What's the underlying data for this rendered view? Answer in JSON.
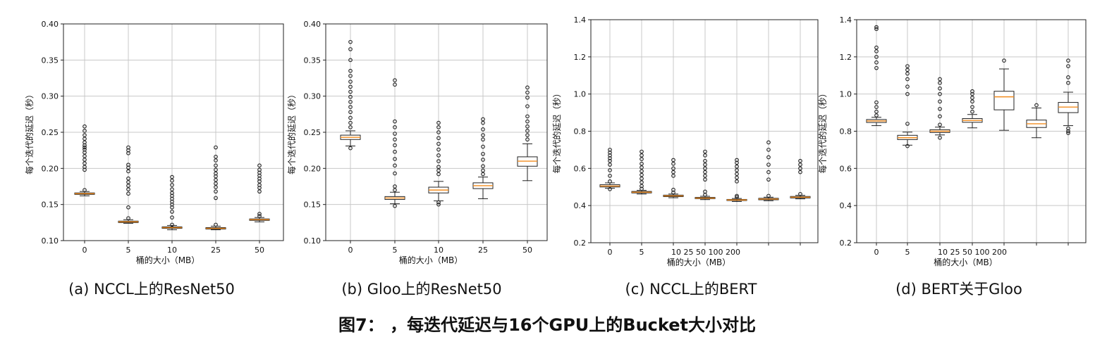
{
  "figure_title": "图7： ，每迭代延迟与16个GPU上的Bucket大小对比",
  "chart_data": [
    {
      "type": "box",
      "caption": "(a) NCCL上的ResNet50",
      "xlabel": "桶的大小（MB）",
      "ylabel": "每个迭代的延迟（秒）",
      "ylim": [
        0.1,
        0.4
      ],
      "yticks": [
        0.1,
        0.15,
        0.2,
        0.25,
        0.3,
        0.35,
        0.4
      ],
      "grid": true,
      "categories": [
        "0",
        "5",
        "10",
        "25",
        "50"
      ],
      "boxes": [
        {
          "med": 0.165,
          "q1": 0.164,
          "q3": 0.166,
          "wlo": 0.162,
          "whi": 0.168,
          "fliers": [
            0.17,
            0.198,
            0.202,
            0.207,
            0.212,
            0.217,
            0.222,
            0.226,
            0.229,
            0.232,
            0.236,
            0.241,
            0.246,
            0.252,
            0.258
          ]
        },
        {
          "med": 0.126,
          "q1": 0.125,
          "q3": 0.127,
          "wlo": 0.124,
          "whi": 0.129,
          "fliers": [
            0.131,
            0.146,
            0.165,
            0.171,
            0.176,
            0.181,
            0.186,
            0.196,
            0.201,
            0.205,
            0.221,
            0.225,
            0.229
          ]
        },
        {
          "med": 0.118,
          "q1": 0.117,
          "q3": 0.119,
          "wlo": 0.115,
          "whi": 0.121,
          "fliers": [
            0.122,
            0.132,
            0.14,
            0.146,
            0.15,
            0.154,
            0.158,
            0.162,
            0.166,
            0.171,
            0.177,
            0.183,
            0.188
          ]
        },
        {
          "med": 0.117,
          "q1": 0.116,
          "q3": 0.118,
          "wlo": 0.115,
          "whi": 0.12,
          "fliers": [
            0.122,
            0.159,
            0.168,
            0.174,
            0.179,
            0.184,
            0.189,
            0.193,
            0.198,
            0.204,
            0.211,
            0.216,
            0.229
          ]
        },
        {
          "med": 0.129,
          "q1": 0.128,
          "q3": 0.13,
          "wlo": 0.126,
          "whi": 0.132,
          "fliers": [
            0.134,
            0.137,
            0.168,
            0.173,
            0.177,
            0.182,
            0.186,
            0.19,
            0.194,
            0.198,
            0.204
          ]
        }
      ]
    },
    {
      "type": "box",
      "caption": "(b) Gloo上的ResNet50",
      "xlabel": "桶的大小（MB）",
      "ylabel": "每个迭代的延迟（秒）",
      "ylim": [
        0.1,
        0.4
      ],
      "yticks": [
        0.1,
        0.15,
        0.2,
        0.25,
        0.3,
        0.35,
        0.4
      ],
      "grid": true,
      "categories": [
        "0",
        "5",
        "10",
        "25",
        "50"
      ],
      "boxes": [
        {
          "med": 0.243,
          "q1": 0.24,
          "q3": 0.246,
          "wlo": 0.231,
          "whi": 0.252,
          "fliers": [
            0.228,
            0.257,
            0.263,
            0.27,
            0.278,
            0.285,
            0.292,
            0.299,
            0.306,
            0.313,
            0.32,
            0.328,
            0.335,
            0.35,
            0.365,
            0.375
          ]
        },
        {
          "med": 0.159,
          "q1": 0.157,
          "q3": 0.161,
          "wlo": 0.151,
          "whi": 0.167,
          "fliers": [
            0.148,
            0.17,
            0.175,
            0.193,
            0.204,
            0.213,
            0.223,
            0.232,
            0.24,
            0.248,
            0.257,
            0.265,
            0.316,
            0.322
          ]
        },
        {
          "med": 0.17,
          "q1": 0.166,
          "q3": 0.174,
          "wlo": 0.155,
          "whi": 0.182,
          "fliers": [
            0.15,
            0.153,
            0.192,
            0.197,
            0.202,
            0.21,
            0.218,
            0.226,
            0.234,
            0.242,
            0.25,
            0.257,
            0.263
          ]
        },
        {
          "med": 0.176,
          "q1": 0.172,
          "q3": 0.18,
          "wlo": 0.158,
          "whi": 0.188,
          "fliers": [
            0.192,
            0.197,
            0.203,
            0.212,
            0.22,
            0.23,
            0.24,
            0.246,
            0.254,
            0.263,
            0.268
          ]
        },
        {
          "med": 0.21,
          "q1": 0.203,
          "q3": 0.216,
          "wlo": 0.183,
          "whi": 0.234,
          "fliers": [
            0.24,
            0.246,
            0.252,
            0.258,
            0.265,
            0.272,
            0.286,
            0.298,
            0.305,
            0.312
          ]
        }
      ]
    },
    {
      "type": "box",
      "caption": "(c) NCCL上的BERT",
      "xlabel": "桶的大小（MB）",
      "ylabel": "每个迭代的延迟（秒）",
      "ylim": [
        0.2,
        1.4
      ],
      "yticks": [
        0.2,
        0.4,
        0.6,
        0.8,
        1.0,
        1.2,
        1.4
      ],
      "grid": true,
      "categories": [
        "0",
        "5",
        "10",
        "25",
        "50",
        "100",
        "200"
      ],
      "tick_labels": [
        "0",
        "5",
        "10 25 50 100 200"
      ],
      "boxes": [
        {
          "med": 0.505,
          "q1": 0.5,
          "q3": 0.512,
          "wlo": 0.493,
          "whi": 0.522,
          "fliers": [
            0.488,
            0.53,
            0.56,
            0.59,
            0.62,
            0.64,
            0.655,
            0.67,
            0.685,
            0.7
          ]
        },
        {
          "med": 0.472,
          "q1": 0.468,
          "q3": 0.476,
          "wlo": 0.462,
          "whi": 0.482,
          "fliers": [
            0.49,
            0.505,
            0.525,
            0.545,
            0.565,
            0.585,
            0.605,
            0.625,
            0.65,
            0.67,
            0.69
          ]
        },
        {
          "med": 0.452,
          "q1": 0.448,
          "q3": 0.456,
          "wlo": 0.442,
          "whi": 0.462,
          "fliers": [
            0.47,
            0.485,
            0.56,
            0.58,
            0.6,
            0.625,
            0.645
          ]
        },
        {
          "med": 0.44,
          "q1": 0.437,
          "q3": 0.444,
          "wlo": 0.432,
          "whi": 0.45,
          "fliers": [
            0.458,
            0.475,
            0.54,
            0.56,
            0.58,
            0.6,
            0.62,
            0.64,
            0.67,
            0.69
          ]
        },
        {
          "med": 0.43,
          "q1": 0.427,
          "q3": 0.433,
          "wlo": 0.422,
          "whi": 0.438,
          "fliers": [
            0.445,
            0.452,
            0.53,
            0.55,
            0.57,
            0.59,
            0.61,
            0.63,
            0.645
          ]
        },
        {
          "med": 0.435,
          "q1": 0.431,
          "q3": 0.439,
          "wlo": 0.426,
          "whi": 0.445,
          "fliers": [
            0.452,
            0.54,
            0.58,
            0.62,
            0.66,
            0.7,
            0.74
          ]
        },
        {
          "med": 0.445,
          "q1": 0.441,
          "q3": 0.449,
          "wlo": 0.436,
          "whi": 0.455,
          "fliers": [
            0.462,
            0.58,
            0.6,
            0.62,
            0.64
          ]
        }
      ]
    },
    {
      "type": "box",
      "caption": "(d) BERT关于Gloo",
      "xlabel": "桶的大小（MB）",
      "ylabel": "每个迭代的延迟（秒）",
      "ylim": [
        0.2,
        1.4
      ],
      "yticks": [
        0.2,
        0.4,
        0.6,
        0.8,
        1.0,
        1.2,
        1.4
      ],
      "grid": true,
      "categories": [
        "0",
        "5",
        "10",
        "25",
        "50",
        "100",
        "200"
      ],
      "tick_labels": [
        "0",
        "5",
        "10 25 50 100 200"
      ],
      "boxes": [
        {
          "med": 0.855,
          "q1": 0.847,
          "q3": 0.863,
          "wlo": 0.83,
          "whi": 0.875,
          "fliers": [
            0.885,
            0.905,
            0.93,
            0.955,
            1.14,
            1.17,
            1.2,
            1.23,
            1.25,
            1.35,
            1.36
          ]
        },
        {
          "med": 0.765,
          "q1": 0.755,
          "q3": 0.778,
          "wlo": 0.725,
          "whi": 0.795,
          "fliers": [
            0.72,
            0.84,
            1.0,
            1.04,
            1.08,
            1.11,
            1.13,
            1.15
          ]
        },
        {
          "med": 0.8,
          "q1": 0.793,
          "q3": 0.808,
          "wlo": 0.78,
          "whi": 0.822,
          "fliers": [
            0.765,
            0.835,
            0.88,
            0.92,
            0.96,
            1.0,
            1.03,
            1.06,
            1.08
          ]
        },
        {
          "med": 0.858,
          "q1": 0.848,
          "q3": 0.868,
          "wlo": 0.818,
          "whi": 0.89,
          "fliers": [
            0.905,
            0.93,
            0.96,
            0.98,
            1.0,
            1.015
          ]
        },
        {
          "med": 0.985,
          "q1": 0.915,
          "q3": 1.015,
          "wlo": 0.805,
          "whi": 1.135,
          "fliers": [
            1.18
          ]
        },
        {
          "med": 0.84,
          "q1": 0.82,
          "q3": 0.86,
          "wlo": 0.765,
          "whi": 0.925,
          "fliers": [
            0.94
          ]
        },
        {
          "med": 0.93,
          "q1": 0.9,
          "q3": 0.955,
          "wlo": 0.83,
          "whi": 1.01,
          "fliers": [
            0.79,
            0.8,
            0.815,
            1.06,
            1.09,
            1.15,
            1.18
          ]
        }
      ]
    }
  ]
}
